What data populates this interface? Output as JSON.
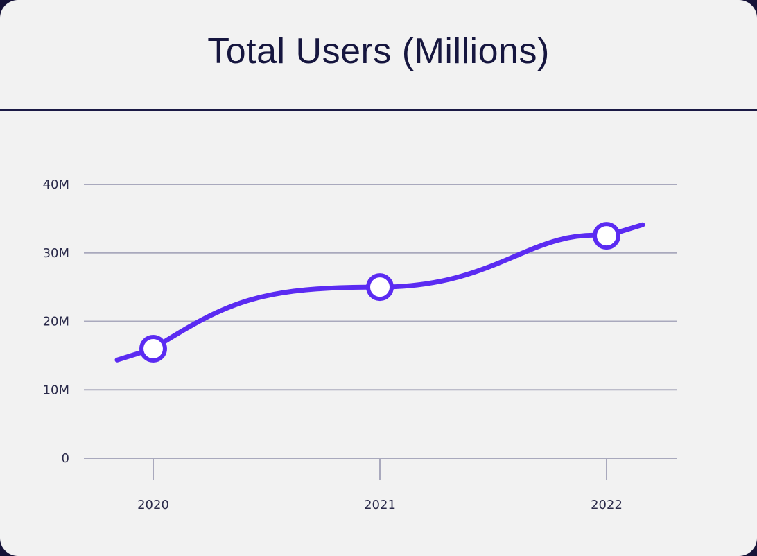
{
  "chart_data": {
    "type": "line",
    "title": "Total Users (Millions)",
    "categories": [
      "2020",
      "2021",
      "2022"
    ],
    "y_tick_labels": [
      "0",
      "10M",
      "20M",
      "30M",
      "40M"
    ],
    "y_ticks": [
      0,
      10,
      20,
      30,
      40
    ],
    "ylim": [
      0,
      40
    ],
    "grid": true,
    "series": [
      {
        "values": [
          16,
          25,
          32.5
        ]
      }
    ],
    "line_color": "#5b2bf2",
    "marker_fill": "#ffffff",
    "gridline_color": "#a9a9bd",
    "axis_text_color": "#2a2a4a",
    "title_color": "#16163f",
    "header_rule_color": "#1b1a45",
    "background_color": "#f2f2f2"
  }
}
